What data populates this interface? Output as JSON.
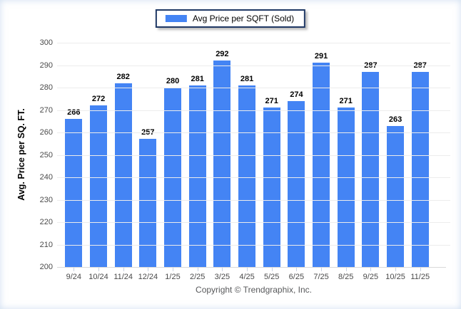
{
  "legend": {
    "label": "Avg Price per SQFT (Sold)"
  },
  "y_axis_title": "Avg. Price per SQ. FT.",
  "footer": "Copyright © Trendgraphix, Inc.",
  "colors": {
    "bar": "#4484f4",
    "legend_border": "#1f3864",
    "gridline": "#ececec",
    "baseline": "#d9d9d9",
    "tick_label": "#4a4a4a",
    "value_label": "#000000",
    "footer_text": "#58595b"
  },
  "chart_data": {
    "type": "bar",
    "title": "",
    "series_name": "Avg Price per SQFT (Sold)",
    "categories": [
      "9/24",
      "10/24",
      "11/24",
      "12/24",
      "1/25",
      "2/25",
      "3/25",
      "4/25",
      "5/25",
      "6/25",
      "7/25",
      "8/25",
      "9/25",
      "10/25",
      "11/25"
    ],
    "values": [
      266,
      272,
      282,
      257,
      280,
      281,
      292,
      281,
      271,
      274,
      291,
      271,
      287,
      263,
      287
    ],
    "xlabel": "",
    "ylabel": "Avg. Price per SQ. FT.",
    "ylim": [
      200,
      300
    ],
    "y_ticks": [
      300,
      290,
      280,
      270,
      260,
      250,
      240,
      230,
      220,
      210,
      200
    ],
    "grid": "horizontal",
    "legend_position": "top-center",
    "value_labels": "above-bars"
  }
}
